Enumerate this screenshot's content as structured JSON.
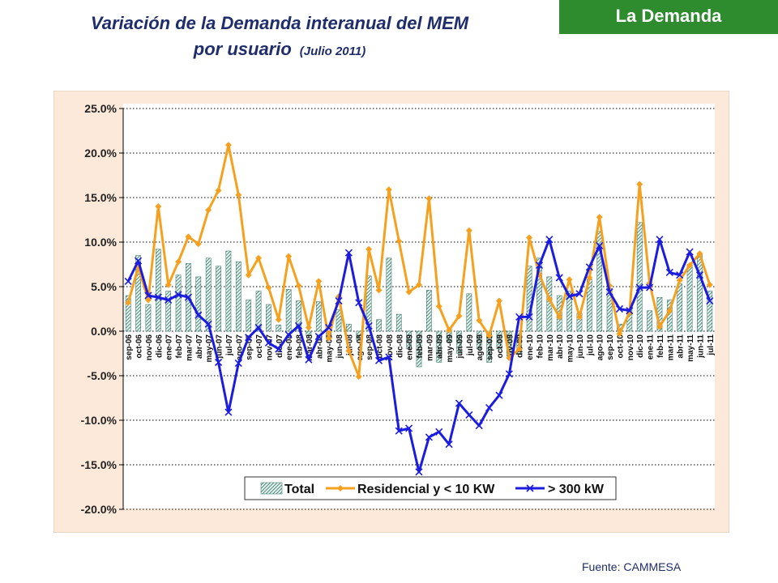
{
  "header": {
    "title_line1": "Variación de la Demanda interanual del MEM",
    "title_line2": "por usuario",
    "title_date": "(Julio 2011)",
    "badge": "La Demanda"
  },
  "footer": {
    "source": "Fuente: CAMMESA"
  },
  "colors": {
    "background": "#fde9d9",
    "total": "#4a8c7c",
    "residencial": "#f5a11f",
    "industrial": "#1c1ce0",
    "badge": "#2e8b2e",
    "title": "#1f2d6b"
  },
  "chart_data": {
    "type": "bar",
    "categories": [
      "sep-06",
      "oct-06",
      "nov-06",
      "dic-06",
      "ene-07",
      "feb-07",
      "mar-07",
      "abr-07",
      "may-07",
      "jun-07",
      "jul-07",
      "ago-07",
      "sep-07",
      "oct-07",
      "nov-07",
      "dic-07",
      "ene-08",
      "feb-08",
      "mar-08",
      "abr-08",
      "may-08",
      "jun-08",
      "jul-08",
      "ago-08",
      "sep-08",
      "oct-08",
      "nov-08",
      "dic-08",
      "ene-09",
      "feb-09",
      "mar-09",
      "abr-09",
      "may-09",
      "jun-09",
      "jul-09",
      "ago-09",
      "sep-09",
      "oct-09",
      "nov-09",
      "dic-09",
      "ene-10",
      "feb-10",
      "mar-10",
      "abr-10",
      "may-10",
      "jun-10",
      "jul-10",
      "ago-10",
      "sep-10",
      "oct-10",
      "nov-10",
      "dic-10",
      "ene-11",
      "feb-11",
      "mar-11",
      "abr-11",
      "may-11",
      "jun-11",
      "jul-11"
    ],
    "tick_labels": [
      "sep-06",
      "oct-06",
      "nov-06",
      "dic-06",
      "ene-07",
      "feb-07",
      "mar-07",
      "abr-07",
      "may-07",
      "jun-07",
      "jul-07",
      "ago-07",
      "sep-07",
      "oct-07",
      "nov-07",
      "dic-07",
      "ene-08",
      "feb-08",
      "mar-08",
      "abr-08",
      "may-08",
      "jun-08",
      "jul-08",
      "ago-08",
      "sep-08",
      "oct-08",
      "nov-08",
      "dic-08",
      "ene-09",
      "feb-09",
      "mar-09",
      "abr-09",
      "may-09",
      "jun-09",
      "jul-09",
      "ago-09",
      "sep-09",
      "oct-09",
      "nov-09",
      "dic-09",
      "ene-10",
      "feb-10",
      "mar-10",
      "abr-10",
      "may-10",
      "jun-10",
      "jul-10",
      "ago-10",
      "sep-10",
      "oct-10",
      "nov-10",
      "dic-10",
      "ene-11",
      "feb-11",
      "mar-11",
      "abr-11",
      "may-11",
      "jun-11",
      "jul-11"
    ],
    "series": [
      {
        "name": "Total",
        "type": "bar",
        "values": [
          4.0,
          8.5,
          3.0,
          9.2,
          4.5,
          6.3,
          7.6,
          6.1,
          8.2,
          7.3,
          9.0,
          7.8,
          3.5,
          4.5,
          3.0,
          0.7,
          4.7,
          3.4,
          -0.5,
          3.3,
          -0.8,
          2.4,
          0.8,
          -1.0,
          6.2,
          1.3,
          8.2,
          1.9,
          -2.0,
          -4.0,
          4.6,
          -3.5,
          -1.2,
          -2.5,
          4.2,
          -2.0,
          -3.5,
          -2.0,
          -2.8,
          -2.5,
          7.3,
          8.2,
          6.1,
          4.0,
          4.5,
          2.0,
          5.8,
          11.2,
          4.8,
          0.8,
          2.5,
          12.2,
          2.3,
          3.8,
          3.5,
          5.3,
          7.5,
          8.6,
          4.5
        ]
      },
      {
        "name": "Residencial y < 10 KW",
        "type": "line",
        "values": [
          3.2,
          7.2,
          3.5,
          14.0,
          5.2,
          7.8,
          10.6,
          9.8,
          13.6,
          15.8,
          20.9,
          15.3,
          6.3,
          8.2,
          4.9,
          1.3,
          8.4,
          5.1,
          0.4,
          5.6,
          -0.8,
          3.9,
          -2.2,
          -5.1,
          9.2,
          4.6,
          15.9,
          10.1,
          4.4,
          5.2,
          14.9,
          2.8,
          0.1,
          1.7,
          11.3,
          1.2,
          -0.5,
          3.4,
          -3.0,
          -2.0,
          10.5,
          6.4,
          3.6,
          1.6,
          5.8,
          1.6,
          6.0,
          12.8,
          5.1,
          -0.3,
          2.1,
          16.5,
          5.4,
          0.5,
          2.3,
          5.7,
          7.4,
          8.7,
          5.2
        ]
      },
      {
        "name": "> 300 kW",
        "type": "line",
        "values": [
          5.6,
          7.9,
          4.0,
          3.8,
          3.5,
          4.1,
          3.8,
          1.8,
          0.8,
          -3.5,
          -9.1,
          -3.6,
          -0.7,
          0.4,
          -1.3,
          -2.0,
          -0.4,
          0.6,
          -3.2,
          -0.6,
          0.4,
          3.4,
          8.8,
          3.2,
          0.6,
          -3.3,
          -2.9,
          -11.2,
          -10.9,
          -15.8,
          -11.9,
          -11.3,
          -12.7,
          -8.1,
          -9.4,
          -10.6,
          -8.6,
          -7.2,
          -4.8,
          1.6,
          1.6,
          7.4,
          10.3,
          6.0,
          3.9,
          4.2,
          7.2,
          9.6,
          4.4,
          2.5,
          2.3,
          4.9,
          4.9,
          10.3,
          6.6,
          6.3,
          8.9,
          6.3,
          3.4
        ]
      }
    ],
    "yticks": [
      "25.0%",
      "20.0%",
      "15.0%",
      "10.0%",
      "5.0%",
      "0.0%",
      "-5.0%",
      "-10.0%",
      "-15.0%",
      "-20.0%"
    ],
    "ylim": [
      -20,
      25
    ],
    "ystep": 5,
    "grid": "horizontal dotted",
    "legend_position": "bottom-inside"
  }
}
